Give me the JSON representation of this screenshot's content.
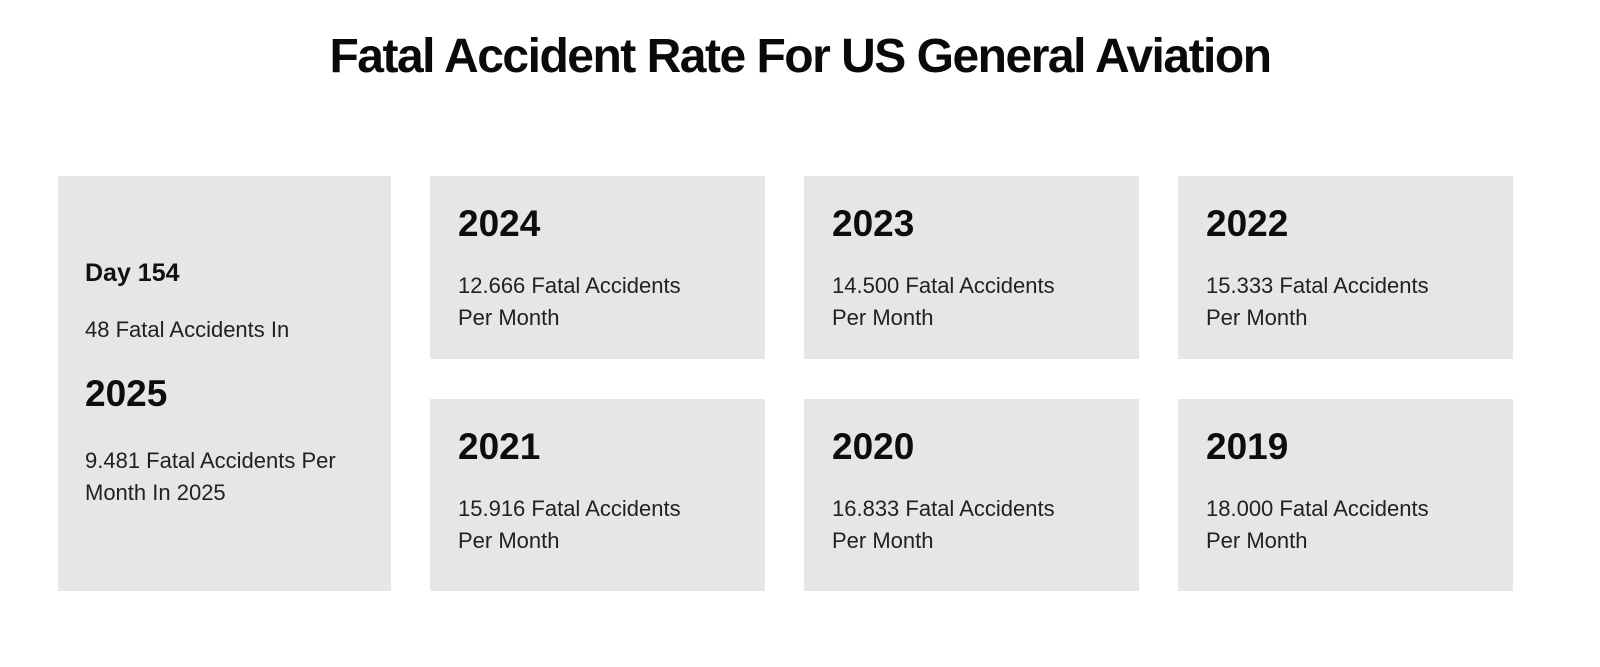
{
  "page": {
    "title": "Fatal Accident Rate For US General Aviation",
    "background_color": "#ffffff",
    "card_background_color": "#e6e6e6",
    "heading_text_color": "#0d0d0d",
    "body_text_color": "#212121"
  },
  "current": {
    "day_label": "Day 154",
    "accidents_line": "48 Fatal Accidents In",
    "year": "2025",
    "rate_line": "9.481 Fatal Accidents Per Month In 2025"
  },
  "years": [
    {
      "year": "2024",
      "rate": "12.666 Fatal Accidents Per Month"
    },
    {
      "year": "2023",
      "rate": "14.500 Fatal Accidents Per Month"
    },
    {
      "year": "2022",
      "rate": "15.333 Fatal Accidents Per Month"
    },
    {
      "year": "2021",
      "rate": "15.916 Fatal Accidents Per Month"
    },
    {
      "year": "2020",
      "rate": "16.833 Fatal Accidents Per Month"
    },
    {
      "year": "2019",
      "rate": "18.000 Fatal Accidents Per Month"
    }
  ]
}
